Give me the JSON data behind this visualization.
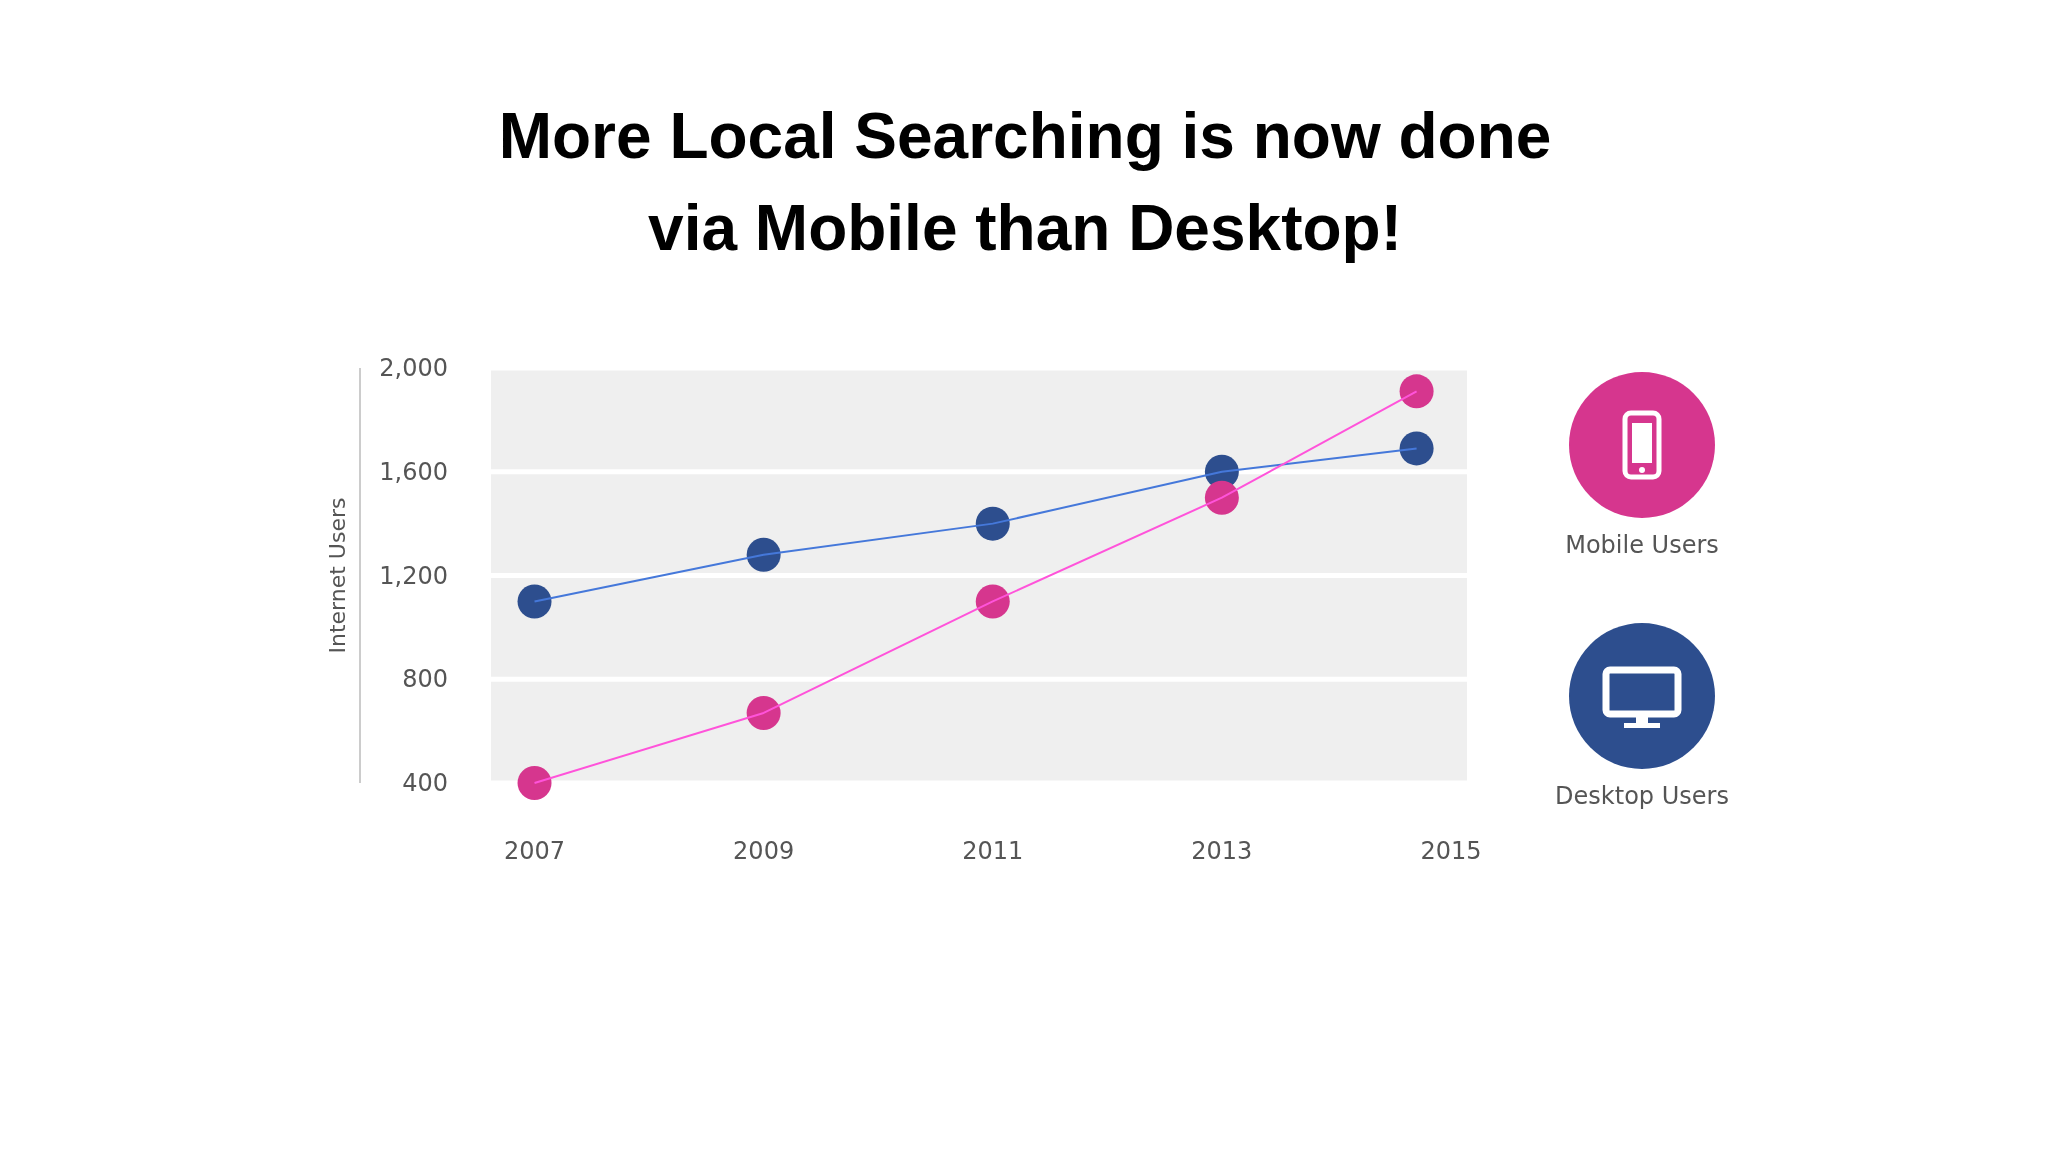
{
  "chart_data": {
    "type": "line",
    "title": "More Local Searching is now done via Mobile than Desktop!",
    "ylabel": "Internet Users",
    "x": [
      2007,
      2009,
      2011,
      2013,
      2014.7
    ],
    "series": [
      {
        "name": "Desktop Users",
        "color": "#2d4e8e",
        "values": [
          1100,
          1280,
          1400,
          1600,
          1690
        ]
      },
      {
        "name": "Mobile Users",
        "color": "#d6368e",
        "values": [
          400,
          670,
          1100,
          1500,
          1910
        ]
      }
    ],
    "xlim": [
      2006.62,
      2015.14
    ],
    "xticks": [
      2007,
      2009,
      2011,
      2013,
      2015
    ],
    "ylim": [
      400,
      2000
    ],
    "yticks": [
      {
        "value": 400,
        "label": "400"
      },
      {
        "value": 800,
        "label": "800"
      },
      {
        "value": 1200,
        "label": "1,200"
      },
      {
        "value": 1600,
        "label": "1,600"
      },
      {
        "value": 2000,
        "label": "2,000"
      }
    ],
    "grid": "y",
    "legend": "right",
    "marker": "circle",
    "line_style": "solid"
  }
}
